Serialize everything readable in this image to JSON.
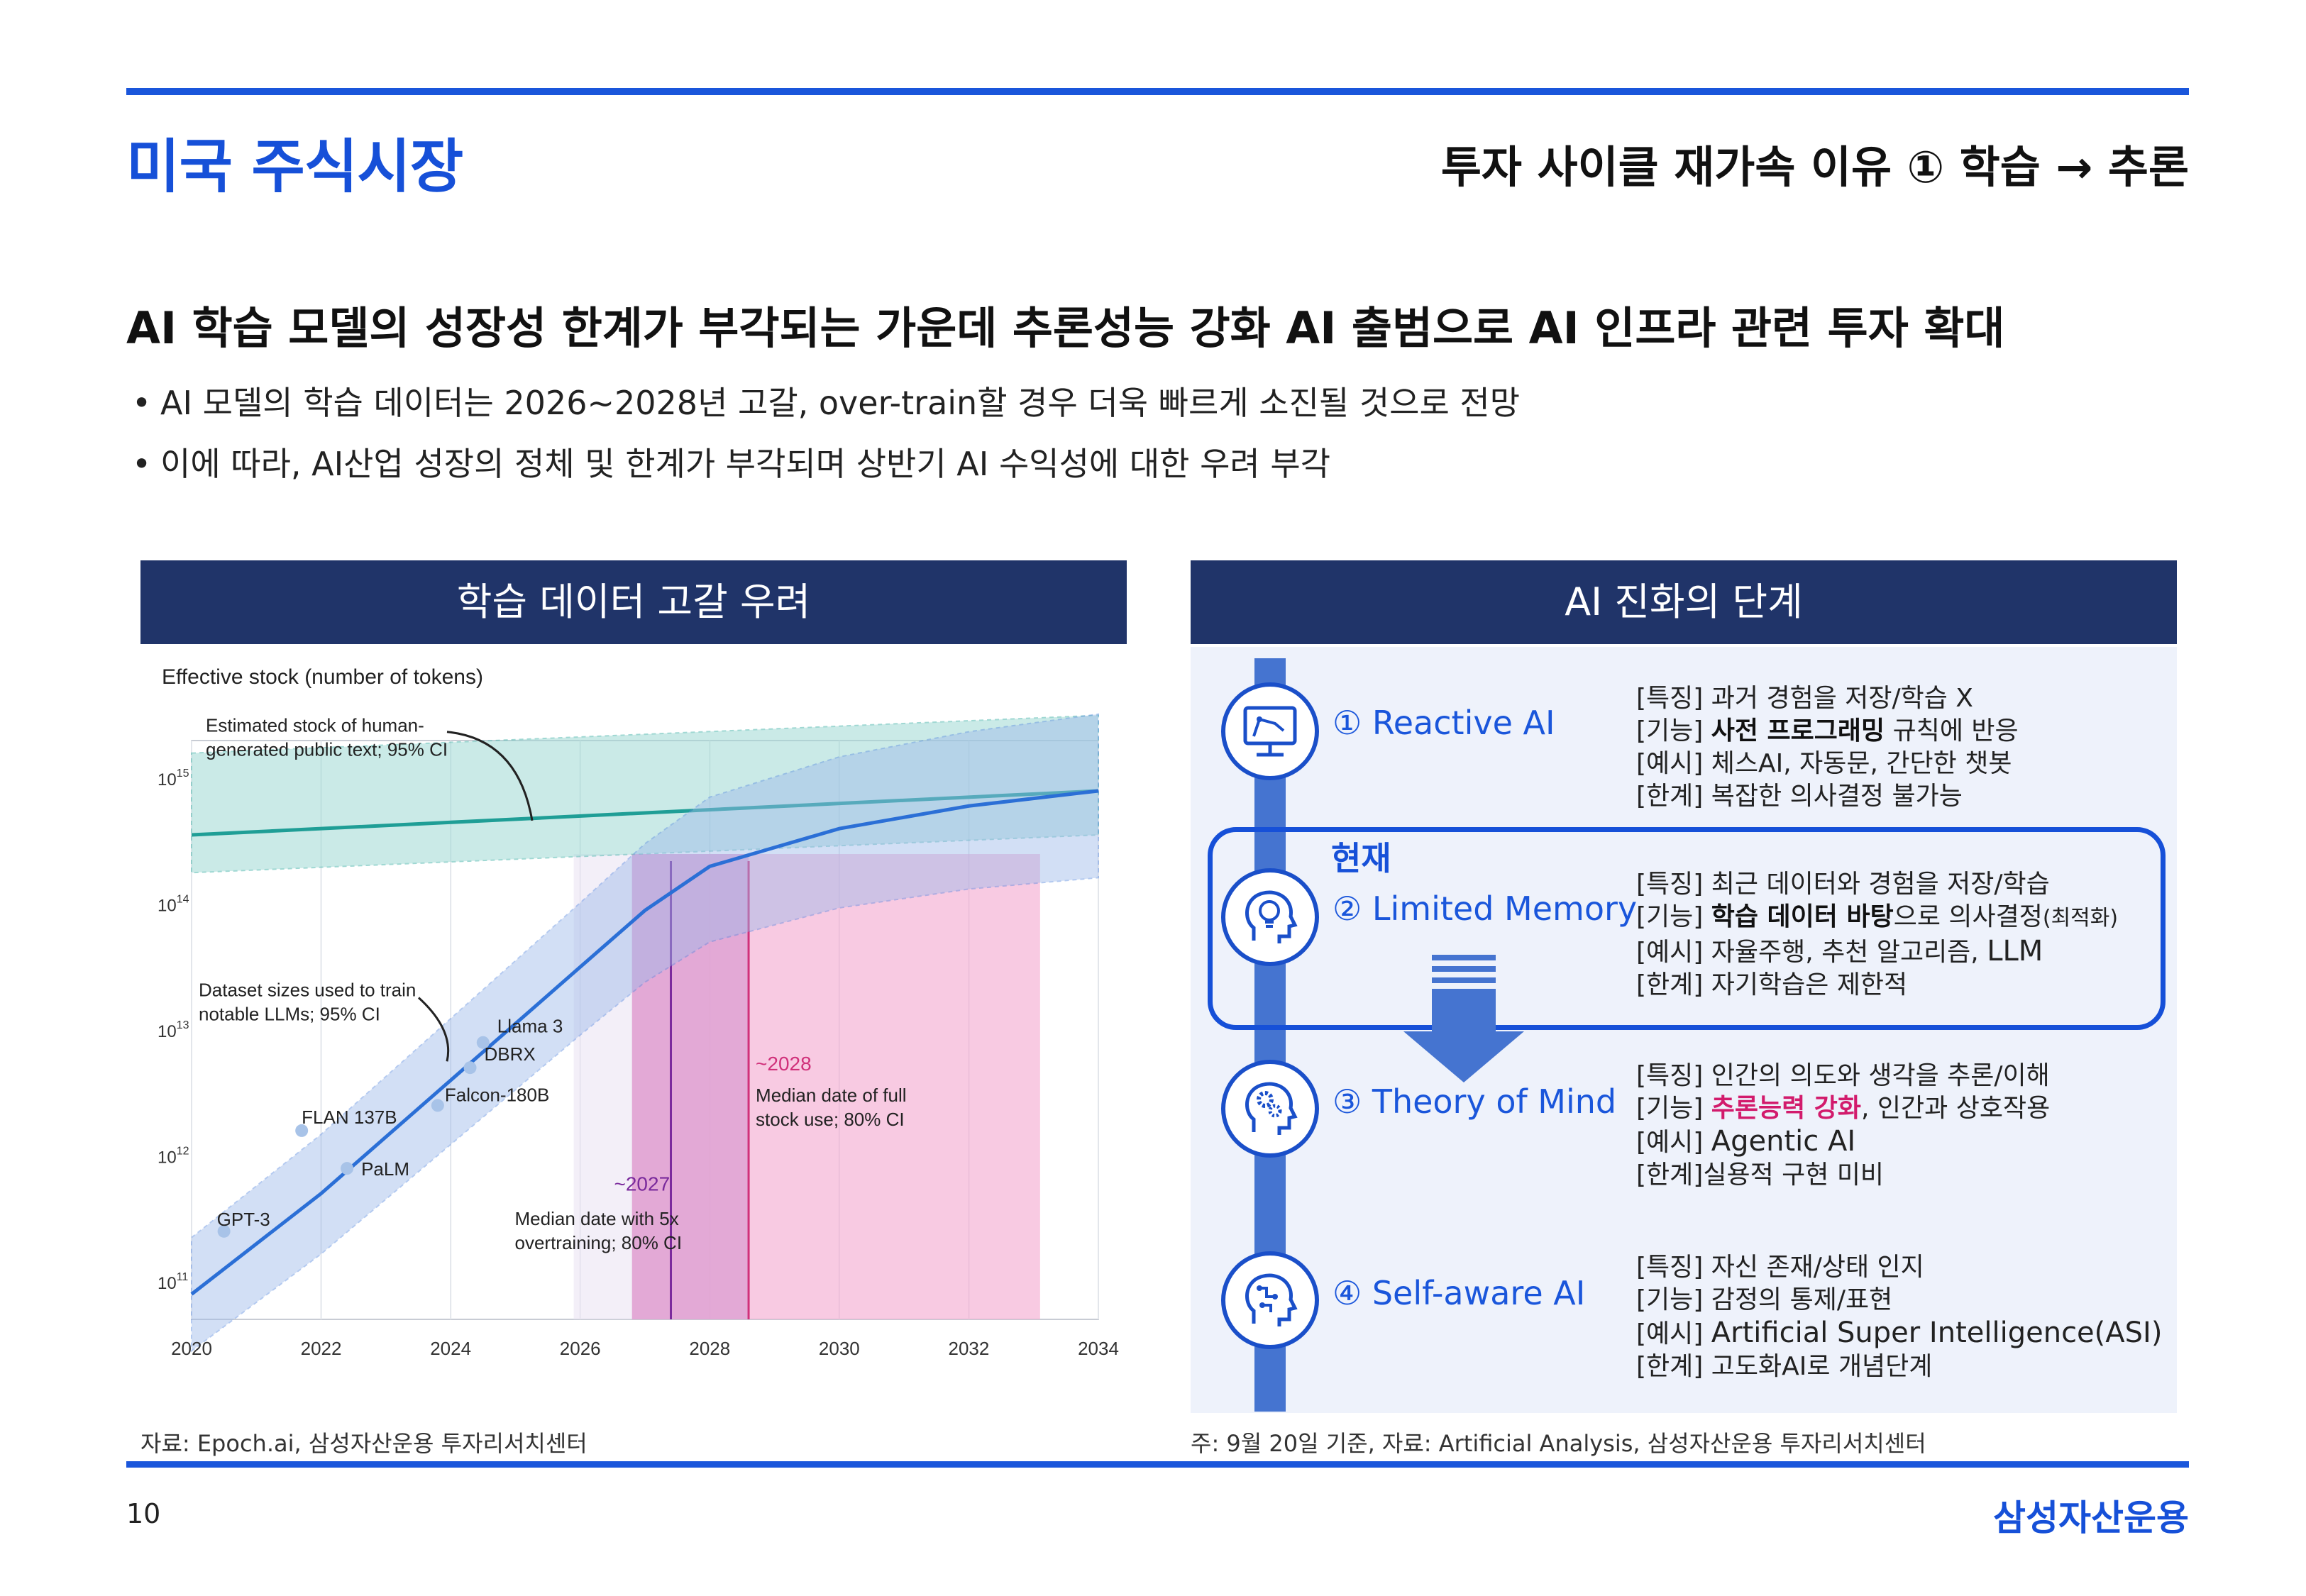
{
  "header": {
    "title": "미국 주식시장",
    "subtitle": "투자 사이클 재가속 이유 ① 학습 → 추론"
  },
  "headline": "AI 학습 모델의 성장성 한계가 부각되는 가운데 추론성능 강화 AI 출범으로 AI 인프라 관련 투자 확대",
  "bullets": [
    "AI 모델의 학습 데이터는 2026~2028년 고갈, over-train할 경우 더욱 빠르게 소진될 것으로 전망",
    "이에 따라, AI산업 성장의 정체 및 한계가 부각되며 상반기 AI 수익성에 대한 우려 부각"
  ],
  "left_panel": {
    "title": "학습 데이터 고갈 우려",
    "source": "자료: Epoch.ai, 삼성자산운용 투자리서치센터"
  },
  "right_panel": {
    "title": "AI 진화의 단계",
    "source": "주: 9월 20일 기준, 자료: Artificial Analysis, 삼성자산운용 투자리서치센터",
    "current_label": "현재",
    "stages": [
      {
        "name": "① Reactive AI",
        "icon": "monitor-robot-arm-icon",
        "feature": "[특징] 과거 경험을 저장/학습 X",
        "function_prefix": "[기능] ",
        "function_bold": "사전 프로그래밍",
        "function_rest": " 규칙에 반응",
        "example": "[예시] 체스AI, 자동문, 간단한 챗봇",
        "limit": "[한계] 복잡한 의사결정 불가능"
      },
      {
        "name": "② Limited Memory",
        "icon": "head-lightbulb-icon",
        "feature": "[특징] 최근 데이터와 경험을 저장/학습",
        "function_prefix": "[기능] ",
        "function_bold": "학습 데이터 바탕",
        "function_rest": "으로  의사결정",
        "function_small": "(최적화)",
        "example_prefix": "[예시] 자율주행, 추천 알고리즘, ",
        "example_big": "LLM",
        "limit": "[한계] 자기학습은 제한적"
      },
      {
        "name": "③ Theory of Mind",
        "icon": "head-gears-icon",
        "feature": "[특징] 인간의 의도와 생각을 추론/이해",
        "function_prefix": "[기능] ",
        "function_pink": "추론능력 강화",
        "function_rest": ", 인간과 상호작용",
        "example_prefix": "[예시] ",
        "example_big": "Agentic AI",
        "limit": "[한계]실용적 구현 미비"
      },
      {
        "name": "④ Self-aware AI",
        "icon": "head-circuit-icon",
        "feature": "[특징] 자신 존재/상태 인지",
        "function_prefix": "[기능] 감정의 통제/표현",
        "example_prefix": "[예시] ",
        "example_big": "Artificial Super Intelligence",
        "example_tail": "(ASI)",
        "limit": "[한계] 고도화AI로 개념단계"
      }
    ]
  },
  "chart_data": {
    "type": "line",
    "title": "Effective stock (number of tokens)",
    "x_ticks": [
      "2020",
      "2022",
      "2024",
      "2026",
      "2028",
      "2030",
      "2032",
      "2034"
    ],
    "xlim": [
      2020,
      2034
    ],
    "y_scale": "log",
    "y_ticks": [
      "10^11",
      "10^12",
      "10^13",
      "10^14",
      "10^15"
    ],
    "ylim_exponent": [
      10.7,
      15.3
    ],
    "series": [
      {
        "name": "Estimated stock of human-generated public text; 95% CI",
        "color": "#1f9e96",
        "x": [
          2020,
          2034
        ],
        "log10_y": [
          14.55,
          14.9
        ],
        "log10_ci_low": [
          14.25,
          14.55
        ],
        "log10_ci_high": [
          15.2,
          15.5
        ]
      },
      {
        "name": "Dataset sizes used to train notable LLMs; 95% CI",
        "color": "#2b6fd6",
        "x": [
          2020,
          2022,
          2024,
          2026,
          2027,
          2028,
          2030,
          2032,
          2034
        ],
        "log10_y": [
          10.9,
          11.7,
          12.6,
          13.5,
          13.95,
          14.3,
          14.6,
          14.78,
          14.9
        ]
      }
    ],
    "models": [
      {
        "label": "GPT-3",
        "x": 2020.5,
        "log10_y": 11.4
      },
      {
        "label": "FLAN 137B",
        "x": 2021.7,
        "log10_y": 12.2
      },
      {
        "label": "PaLM",
        "x": 2022.4,
        "log10_y": 11.9
      },
      {
        "label": "Falcon-180B",
        "x": 2023.8,
        "log10_y": 12.4
      },
      {
        "label": "DBRX",
        "x": 2024.3,
        "log10_y": 12.7
      },
      {
        "label": "Llama 3",
        "x": 2024.5,
        "log10_y": 12.9
      }
    ],
    "annotations": [
      {
        "text": "Estimated stock of human-",
        "text2": "generated public text; 95% CI"
      },
      {
        "text": "Dataset sizes used to train",
        "text2": "notable LLMs; 95% CI"
      },
      {
        "text": "~2027",
        "text2": "Median date with 5x",
        "text3": "overtraining; 80% CI",
        "x": 2027.4,
        "ci": [
          2026.8,
          2028.6
        ]
      },
      {
        "text": "~2028",
        "text2": "Median date of full",
        "text3": "stock use; 80% CI",
        "x": 2028.6,
        "ci": [
          2026.8,
          2033.1
        ]
      }
    ]
  },
  "footer": {
    "page_number": "10",
    "brand": "삼성자산운용"
  }
}
